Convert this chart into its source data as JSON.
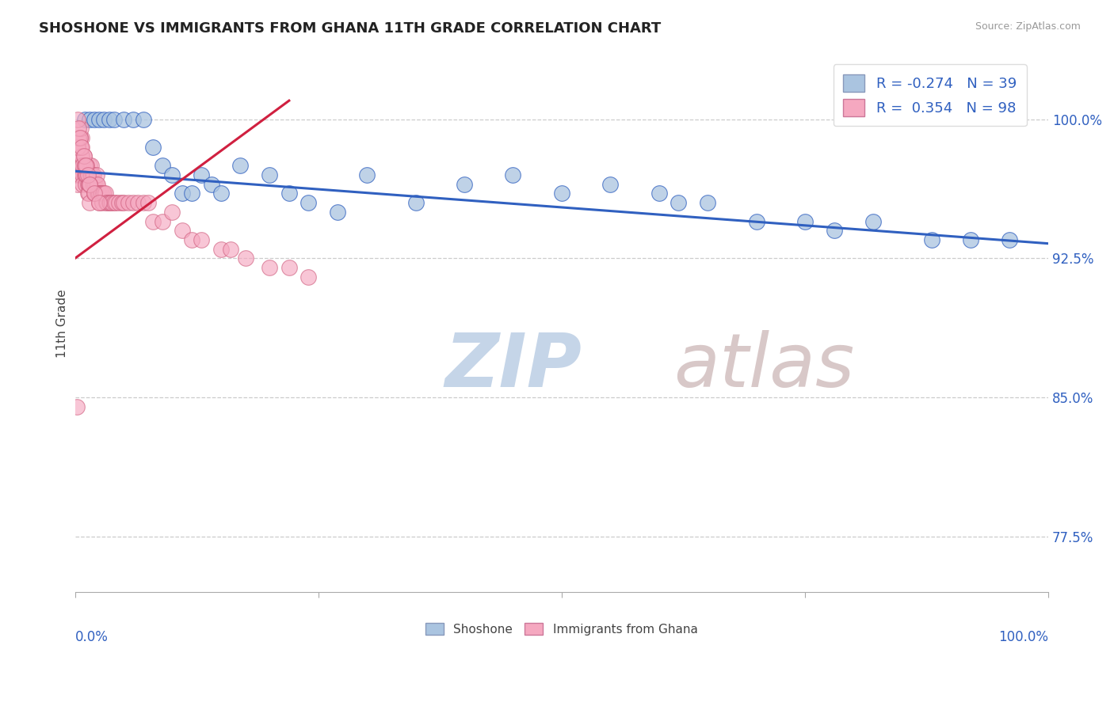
{
  "title": "SHOSHONE VS IMMIGRANTS FROM GHANA 11TH GRADE CORRELATION CHART",
  "source_text": "Source: ZipAtlas.com",
  "ylabel": "11th Grade",
  "y_tick_labels": [
    "77.5%",
    "85.0%",
    "92.5%",
    "100.0%"
  ],
  "y_tick_values": [
    0.775,
    0.85,
    0.925,
    1.0
  ],
  "xlim": [
    0.0,
    1.0
  ],
  "ylim": [
    0.745,
    1.035
  ],
  "legend_r_blue": "-0.274",
  "legend_n_blue": "39",
  "legend_r_pink": "0.354",
  "legend_n_pink": "98",
  "blue_color": "#aac4e0",
  "pink_color": "#f5a8c0",
  "trendline_blue_color": "#3060c0",
  "trendline_pink_color": "#d02040",
  "watermark_color": "#cdd8e8",
  "background_color": "#ffffff",
  "blue_scatter": {
    "x": [
      0.01,
      0.015,
      0.02,
      0.025,
      0.03,
      0.035,
      0.04,
      0.05,
      0.06,
      0.07,
      0.08,
      0.09,
      0.1,
      0.11,
      0.12,
      0.13,
      0.14,
      0.15,
      0.17,
      0.2,
      0.22,
      0.24,
      0.27,
      0.3,
      0.35,
      0.4,
      0.45,
      0.5,
      0.55,
      0.6,
      0.62,
      0.65,
      0.7,
      0.75,
      0.78,
      0.82,
      0.88,
      0.92,
      0.96
    ],
    "y": [
      1.0,
      1.0,
      1.0,
      1.0,
      1.0,
      1.0,
      1.0,
      1.0,
      1.0,
      1.0,
      0.985,
      0.975,
      0.97,
      0.96,
      0.96,
      0.97,
      0.965,
      0.96,
      0.975,
      0.97,
      0.96,
      0.955,
      0.95,
      0.97,
      0.955,
      0.965,
      0.97,
      0.96,
      0.965,
      0.96,
      0.955,
      0.955,
      0.945,
      0.945,
      0.94,
      0.945,
      0.935,
      0.935,
      0.935
    ]
  },
  "pink_scatter": {
    "x": [
      0.002,
      0.003,
      0.004,
      0.005,
      0.005,
      0.006,
      0.006,
      0.007,
      0.007,
      0.008,
      0.008,
      0.009,
      0.009,
      0.01,
      0.01,
      0.011,
      0.011,
      0.012,
      0.012,
      0.013,
      0.013,
      0.014,
      0.014,
      0.015,
      0.015,
      0.016,
      0.016,
      0.017,
      0.017,
      0.018,
      0.018,
      0.019,
      0.019,
      0.02,
      0.02,
      0.021,
      0.021,
      0.022,
      0.022,
      0.023,
      0.023,
      0.024,
      0.025,
      0.025,
      0.026,
      0.027,
      0.028,
      0.029,
      0.03,
      0.031,
      0.032,
      0.033,
      0.035,
      0.036,
      0.038,
      0.04,
      0.042,
      0.045,
      0.048,
      0.05,
      0.055,
      0.06,
      0.065,
      0.07,
      0.075,
      0.08,
      0.09,
      0.1,
      0.11,
      0.12,
      0.13,
      0.15,
      0.16,
      0.175,
      0.2,
      0.22,
      0.24,
      0.005,
      0.006,
      0.007,
      0.008,
      0.01,
      0.012,
      0.015,
      0.003,
      0.004,
      0.006,
      0.003,
      0.004,
      0.005,
      0.007,
      0.009,
      0.011,
      0.013,
      0.015,
      0.02,
      0.025,
      0.002
    ],
    "y": [
      0.97,
      0.965,
      0.975,
      0.97,
      0.975,
      0.98,
      0.985,
      0.99,
      0.975,
      0.97,
      0.965,
      0.98,
      0.975,
      0.975,
      0.97,
      0.965,
      0.97,
      0.975,
      0.97,
      0.965,
      0.96,
      0.965,
      0.96,
      0.955,
      0.975,
      0.97,
      0.965,
      0.975,
      0.97,
      0.97,
      0.965,
      0.97,
      0.965,
      0.965,
      0.96,
      0.96,
      0.965,
      0.965,
      0.97,
      0.96,
      0.965,
      0.96,
      0.96,
      0.955,
      0.96,
      0.96,
      0.955,
      0.96,
      0.96,
      0.96,
      0.955,
      0.955,
      0.955,
      0.955,
      0.955,
      0.955,
      0.955,
      0.955,
      0.955,
      0.955,
      0.955,
      0.955,
      0.955,
      0.955,
      0.955,
      0.945,
      0.945,
      0.95,
      0.94,
      0.935,
      0.935,
      0.93,
      0.93,
      0.925,
      0.92,
      0.92,
      0.915,
      0.99,
      0.985,
      0.98,
      0.975,
      0.975,
      0.975,
      0.965,
      0.985,
      0.99,
      0.995,
      1.0,
      0.995,
      0.99,
      0.985,
      0.98,
      0.975,
      0.97,
      0.965,
      0.96,
      0.955,
      0.845
    ]
  },
  "blue_trendline": {
    "x_start": 0.0,
    "x_end": 1.0,
    "y_start": 0.972,
    "y_end": 0.933
  },
  "pink_trendline": {
    "x_start": 0.0,
    "x_end": 0.22,
    "y_start": 0.925,
    "y_end": 1.01
  },
  "watermark_zip": "ZIP",
  "watermark_atlas": "atlas"
}
